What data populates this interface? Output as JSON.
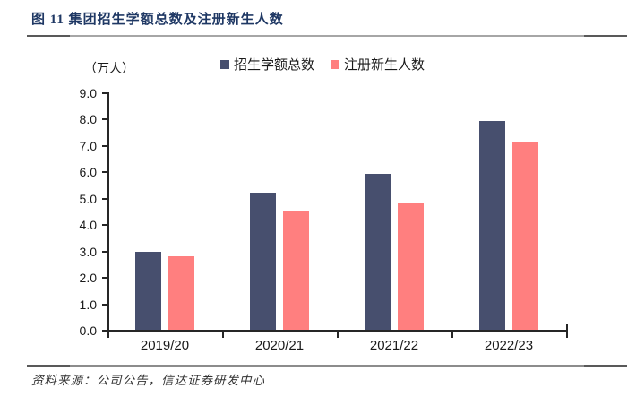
{
  "header": {
    "title": "图 11  集团招生学额总数及注册新生人数"
  },
  "chart_data": {
    "type": "bar",
    "title": "集团招生学额总数及注册新生人数",
    "unit_label": "（万人）",
    "categories": [
      "2019/20",
      "2020/21",
      "2021/22",
      "2022/23"
    ],
    "series": [
      {
        "name": "招生学额总数",
        "color": "#474F6E",
        "values": [
          2.95,
          5.2,
          5.9,
          7.9
        ]
      },
      {
        "name": "注册新生人数",
        "color": "#FF7F7F",
        "values": [
          2.8,
          4.5,
          4.8,
          7.1
        ]
      }
    ],
    "ylim": [
      0,
      9
    ],
    "yticks": [
      "0.0",
      "1.0",
      "2.0",
      "3.0",
      "4.0",
      "5.0",
      "6.0",
      "7.0",
      "8.0",
      "9.0"
    ],
    "grid": false,
    "legend_position": "top-center"
  },
  "footer": {
    "source": "资料来源：公司公告，信达证券研发中心"
  },
  "colors": {
    "title_navy": "#1F3864",
    "axis": "#262626",
    "series1": "#474F6E",
    "series2": "#FF7F7F"
  }
}
